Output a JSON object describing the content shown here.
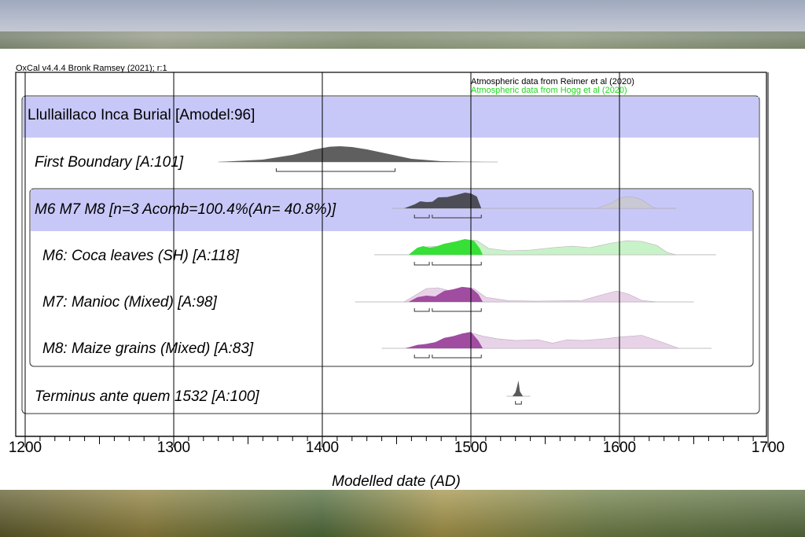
{
  "header": {
    "software": "OxCal v4.4.4 Bronk Ramsey (2021); r:1",
    "atmos_black": "Atmospheric data from Reimer et al (2020)",
    "atmos_green": "Atmospheric data from Hogg et al (2020)"
  },
  "colors": {
    "model_band": "#c8c8f8",
    "posterior_dark": "#4d4d58",
    "boundary": "#5f5f5f",
    "green": "#36e036",
    "green_light": "#c8f2c8",
    "purple": "#a04ca0",
    "purple_light": "#e8d2e8",
    "grey_prior": "#c9c9d4",
    "green_text": "#20d820"
  },
  "chart_data": {
    "type": "area",
    "title": "Llullaillaco Inca Burial [Amodel:96]",
    "xlabel": "Modelled date (AD)",
    "xlim": [
      1200,
      1700
    ],
    "xticks": [
      1200,
      1300,
      1400,
      1500,
      1600,
      1700
    ],
    "rows": [
      {
        "label": "First Boundary [A:101]",
        "prior": [],
        "posterior": [
          [
            1330,
            0
          ],
          [
            1360,
            0.15
          ],
          [
            1380,
            0.45
          ],
          [
            1395,
            0.8
          ],
          [
            1405,
            0.97
          ],
          [
            1412,
            1.0
          ],
          [
            1420,
            0.95
          ],
          [
            1430,
            0.8
          ],
          [
            1445,
            0.5
          ],
          [
            1460,
            0.2
          ],
          [
            1480,
            0.05
          ],
          [
            1510,
            0
          ]
        ],
        "range_95": [
          [
            1369,
            1449
          ]
        ]
      },
      {
        "label": "M6 M7 M8 [n=3 Acomb=100.4%(An= 40.8%)]",
        "prior": [
          [
            1585,
            0
          ],
          [
            1595,
            0.35
          ],
          [
            1600,
            0.65
          ],
          [
            1605,
            0.75
          ],
          [
            1610,
            0.7
          ],
          [
            1615,
            0.55
          ],
          [
            1622,
            0.1
          ],
          [
            1625,
            0
          ]
        ],
        "posterior": [
          [
            1455,
            0
          ],
          [
            1462,
            0.25
          ],
          [
            1466,
            0.45
          ],
          [
            1470,
            0.4
          ],
          [
            1474,
            0.42
          ],
          [
            1478,
            0.7
          ],
          [
            1484,
            0.72
          ],
          [
            1490,
            0.85
          ],
          [
            1496,
            1.0
          ],
          [
            1500,
            0.95
          ],
          [
            1504,
            0.75
          ],
          [
            1507,
            0
          ]
        ],
        "range_95": [
          [
            1462,
            1472
          ],
          [
            1474,
            1507
          ]
        ]
      },
      {
        "label": "M6: Coca leaves (SH) [A:118]",
        "prior": [
          [
            1460,
            0
          ],
          [
            1466,
            0.4
          ],
          [
            1470,
            0.5
          ],
          [
            1478,
            0.55
          ],
          [
            1488,
            0.7
          ],
          [
            1496,
            0.95
          ],
          [
            1504,
            0.9
          ],
          [
            1512,
            0.4
          ],
          [
            1525,
            0.25
          ],
          [
            1540,
            0.3
          ],
          [
            1555,
            0.45
          ],
          [
            1568,
            0.55
          ],
          [
            1580,
            0.45
          ],
          [
            1595,
            0.75
          ],
          [
            1605,
            0.9
          ],
          [
            1615,
            0.85
          ],
          [
            1625,
            0.6
          ],
          [
            1632,
            0.15
          ],
          [
            1638,
            0
          ]
        ],
        "posterior": [
          [
            1458,
            0
          ],
          [
            1464,
            0.45
          ],
          [
            1468,
            0.55
          ],
          [
            1472,
            0.45
          ],
          [
            1476,
            0.5
          ],
          [
            1482,
            0.7
          ],
          [
            1490,
            0.85
          ],
          [
            1496,
            1.0
          ],
          [
            1502,
            0.9
          ],
          [
            1506,
            0.4
          ],
          [
            1508,
            0
          ]
        ],
        "range_95": [
          [
            1462,
            1472
          ],
          [
            1474,
            1507
          ]
        ]
      },
      {
        "label": "M7: Manioc (Mixed) [A:98]",
        "prior": [
          [
            1455,
            0
          ],
          [
            1463,
            0.45
          ],
          [
            1470,
            0.85
          ],
          [
            1478,
            0.9
          ],
          [
            1486,
            0.7
          ],
          [
            1494,
            0.95
          ],
          [
            1502,
            0.85
          ],
          [
            1510,
            0.3
          ],
          [
            1525,
            0.08
          ],
          [
            1545,
            0.05
          ],
          [
            1575,
            0.1
          ],
          [
            1590,
            0.5
          ],
          [
            1598,
            0.7
          ],
          [
            1606,
            0.5
          ],
          [
            1615,
            0.1
          ],
          [
            1625,
            0
          ]
        ],
        "posterior": [
          [
            1458,
            0
          ],
          [
            1464,
            0.3
          ],
          [
            1470,
            0.4
          ],
          [
            1476,
            0.35
          ],
          [
            1482,
            0.7
          ],
          [
            1488,
            0.8
          ],
          [
            1494,
            0.95
          ],
          [
            1500,
            0.9
          ],
          [
            1505,
            0.5
          ],
          [
            1508,
            0
          ]
        ],
        "range_95": [
          [
            1462,
            1472
          ],
          [
            1474,
            1507
          ]
        ]
      },
      {
        "label": "M8: Maize grains (Mixed) [A:83]",
        "prior": [
          [
            1455,
            0
          ],
          [
            1463,
            0.1
          ],
          [
            1470,
            0.25
          ],
          [
            1480,
            0.4
          ],
          [
            1490,
            0.6
          ],
          [
            1500,
            0.9
          ],
          [
            1508,
            0.7
          ],
          [
            1518,
            0.55
          ],
          [
            1530,
            0.45
          ],
          [
            1545,
            0.5
          ],
          [
            1555,
            0.3
          ],
          [
            1565,
            0.5
          ],
          [
            1575,
            0.45
          ],
          [
            1590,
            0.55
          ],
          [
            1600,
            0.65
          ],
          [
            1615,
            0.75
          ],
          [
            1622,
            0.55
          ],
          [
            1632,
            0.25
          ],
          [
            1640,
            0
          ]
        ],
        "posterior": [
          [
            1456,
            0
          ],
          [
            1464,
            0.2
          ],
          [
            1470,
            0.25
          ],
          [
            1476,
            0.35
          ],
          [
            1482,
            0.6
          ],
          [
            1488,
            0.7
          ],
          [
            1494,
            0.85
          ],
          [
            1500,
            0.95
          ],
          [
            1505,
            0.45
          ],
          [
            1508,
            0
          ]
        ],
        "range_95": [
          [
            1462,
            1472
          ],
          [
            1474,
            1507
          ]
        ]
      },
      {
        "label": "Terminus ante quem 1532 [A:100]",
        "prior": [],
        "posterior": [
          [
            1528,
            0
          ],
          [
            1530,
            0.25
          ],
          [
            1531,
            0.6
          ],
          [
            1532,
            1.0
          ],
          [
            1533,
            0.3
          ],
          [
            1535,
            0
          ]
        ],
        "range_95": [
          [
            1530,
            1534
          ]
        ]
      }
    ]
  }
}
